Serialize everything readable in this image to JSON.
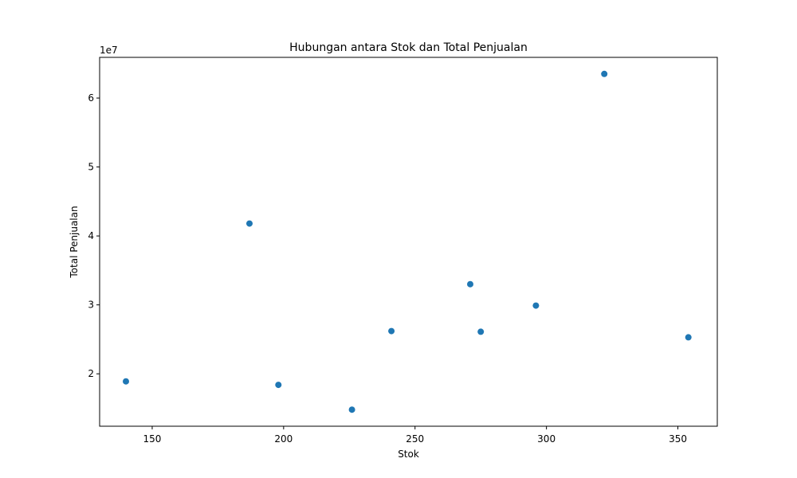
{
  "chart_data": {
    "type": "scatter",
    "title": "Hubungan antara Stok dan Total Penjualan",
    "xlabel": "Stok",
    "ylabel": "Total Penjualan",
    "offset_label": "1e7",
    "xlim": [
      130,
      365
    ],
    "ylim": [
      12400000,
      65900000
    ],
    "xticks": [
      150,
      200,
      250,
      300,
      350
    ],
    "yticks": [
      2,
      3,
      4,
      5,
      6
    ],
    "ytick_scale": 10000000,
    "grid": false,
    "color": "#1f77b4",
    "points": [
      {
        "x": 140,
        "y": 18900000
      },
      {
        "x": 187,
        "y": 41800000
      },
      {
        "x": 198,
        "y": 18400000
      },
      {
        "x": 226,
        "y": 14800000
      },
      {
        "x": 241,
        "y": 26200000
      },
      {
        "x": 271,
        "y": 33000000
      },
      {
        "x": 275,
        "y": 26100000
      },
      {
        "x": 296,
        "y": 29900000
      },
      {
        "x": 322,
        "y": 63500000
      },
      {
        "x": 354,
        "y": 25300000
      }
    ]
  }
}
